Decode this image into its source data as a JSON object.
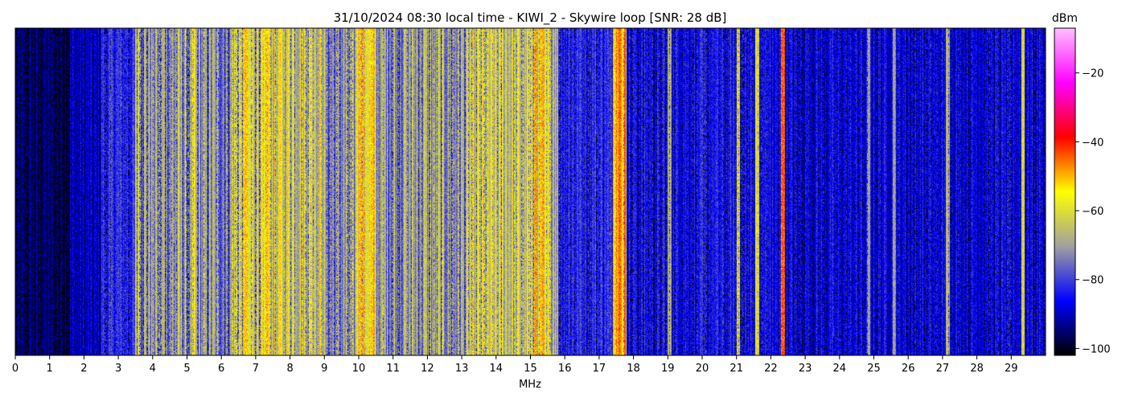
{
  "chart_data": {
    "type": "heatmap",
    "title": "31/10/2024 08:30 local time - KIWI_2 - Skywire loop [SNR: 28 dB]",
    "xlabel": "MHz",
    "ylabel": "",
    "xlim": [
      0,
      30
    ],
    "x_ticks": [
      "0",
      "1",
      "2",
      "3",
      "4",
      "5",
      "6",
      "7",
      "8",
      "9",
      "10",
      "11",
      "12",
      "13",
      "14",
      "15",
      "16",
      "17",
      "18",
      "19",
      "20",
      "21",
      "22",
      "23",
      "24",
      "25",
      "26",
      "27",
      "28",
      "29"
    ],
    "colorbar": {
      "title": "dBm",
      "range": [
        -102,
        -7
      ],
      "ticks": [
        "-20",
        "-40",
        "-60",
        "-80",
        "-100"
      ],
      "colors": [
        "#000000",
        "#0000ff",
        "#a0a0a0",
        "#ffff00",
        "#ff0000",
        "#ff00ff",
        "#ffc0ff"
      ]
    },
    "band_levels_dbm": [
      {
        "from": 0.0,
        "to": 1.6,
        "level": -96
      },
      {
        "from": 1.6,
        "to": 2.5,
        "level": -91
      },
      {
        "from": 2.5,
        "to": 3.5,
        "level": -82
      },
      {
        "from": 3.5,
        "to": 5.3,
        "level": -70
      },
      {
        "from": 5.3,
        "to": 6.3,
        "level": -72
      },
      {
        "from": 6.3,
        "to": 9.0,
        "level": -62
      },
      {
        "from": 9.0,
        "to": 9.9,
        "level": -72
      },
      {
        "from": 9.9,
        "to": 10.5,
        "level": -56
      },
      {
        "from": 10.5,
        "to": 13.2,
        "level": -70
      },
      {
        "from": 13.2,
        "to": 15.8,
        "level": -64
      },
      {
        "from": 15.8,
        "to": 17.4,
        "level": -82
      },
      {
        "from": 17.4,
        "to": 17.8,
        "level": -50
      },
      {
        "from": 17.8,
        "to": 22.0,
        "level": -85
      },
      {
        "from": 22.0,
        "to": 30.0,
        "level": -87
      }
    ],
    "strong_signals_dbm": [
      {
        "freq": 17.6,
        "level": -48
      },
      {
        "freq": 17.5,
        "level": -50
      },
      {
        "freq": 15.15,
        "level": -48
      },
      {
        "freq": 15.35,
        "level": -50
      },
      {
        "freq": 22.35,
        "level": -44
      },
      {
        "freq": 21.05,
        "level": -56
      },
      {
        "freq": 21.6,
        "level": -58
      },
      {
        "freq": 10.05,
        "level": -50
      },
      {
        "freq": 29.35,
        "level": -60
      },
      {
        "freq": 5.2,
        "level": -58
      },
      {
        "freq": 6.7,
        "level": -52
      },
      {
        "freq": 7.35,
        "level": -52
      },
      {
        "freq": 8.6,
        "level": -56
      },
      {
        "freq": 3.6,
        "level": -62
      },
      {
        "freq": 19.05,
        "level": -68
      },
      {
        "freq": 27.15,
        "level": -66
      },
      {
        "freq": 24.85,
        "level": -70
      },
      {
        "freq": 25.6,
        "level": -70
      }
    ]
  }
}
